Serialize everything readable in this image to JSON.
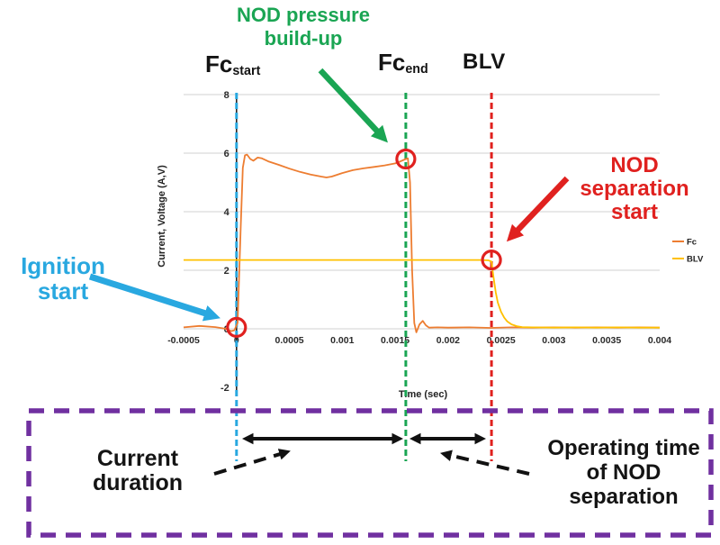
{
  "figure": {
    "labels": {
      "fc_start": {
        "main": "Fc",
        "sub": "start"
      },
      "fc_end": {
        "main": "Fc",
        "sub": "end"
      },
      "blv": "BLV",
      "nod_pressure": "NOD pressure\nbuild-up",
      "nod_separation": "NOD\nseparation\nstart",
      "ignition": "Ignition\nstart",
      "current_duration": "Current\nduration",
      "operating_time": "Operating time\nof NOD\nseparation"
    },
    "colors": {
      "fc_line": "#ED7D31",
      "blv_line": "#FFC000",
      "ignition_blue": "#29A8E0",
      "pressure_green": "#1AA553",
      "separation_red": "#E0211F",
      "box_purple": "#7030A0",
      "annotation_black": "#111111",
      "grid": "#D9D9D9",
      "axis": "#262626"
    }
  },
  "chart_data": {
    "type": "line",
    "title": "",
    "xlabel": "Time (sec)",
    "ylabel": "Current, Voltage (A,V)",
    "xlim": [
      -0.0005,
      0.004
    ],
    "ylim": [
      -2,
      8
    ],
    "grid": "horizontal gridlines at 0,2,4,6,8",
    "legend_position": "right, outside plot",
    "x_tick_values": [
      -0.0005,
      0,
      0.0005,
      0.001,
      0.0015,
      0.002,
      0.0025,
      0.003,
      0.0035,
      0.004
    ],
    "x_tick_labels": [
      "-0.0005",
      "0",
      "0.0005",
      "0.001",
      "0.0015",
      "0.002",
      "0.0025",
      "0.003",
      "0.0035",
      "0.004"
    ],
    "y_tick_values": [
      8,
      6,
      4,
      2,
      0,
      -2
    ],
    "y_tick_labels": [
      "8",
      "6",
      "4",
      "2",
      "0",
      "-2"
    ],
    "gridline_values": [
      8,
      6,
      4,
      2,
      0
    ],
    "legend": [
      {
        "name": "Fc",
        "color_key": "fc_line"
      },
      {
        "name": "BLV",
        "color_key": "blv_line"
      }
    ],
    "series": [
      {
        "name": "Fc",
        "color_key": "fc_line",
        "points": [
          [
            -0.0005,
            0.05
          ],
          [
            -0.00035,
            0.1
          ],
          [
            -0.0002,
            0.06
          ],
          [
            -0.0001,
            0.0
          ],
          [
            -5e-05,
            -0.08
          ],
          [
            -2e-05,
            -0.05
          ],
          [
            1e-05,
            0.2
          ],
          [
            4e-05,
            3.5
          ],
          [
            6e-05,
            5.5
          ],
          [
            8e-05,
            5.93
          ],
          [
            0.0001,
            5.95
          ],
          [
            0.00013,
            5.8
          ],
          [
            0.00016,
            5.74
          ],
          [
            0.0002,
            5.85
          ],
          [
            0.00024,
            5.82
          ],
          [
            0.0003,
            5.72
          ],
          [
            0.0004,
            5.6
          ],
          [
            0.0005,
            5.47
          ],
          [
            0.0006,
            5.36
          ],
          [
            0.0007,
            5.27
          ],
          [
            0.0008,
            5.2
          ],
          [
            0.00085,
            5.17
          ],
          [
            0.0009,
            5.2
          ],
          [
            0.001,
            5.32
          ],
          [
            0.0011,
            5.42
          ],
          [
            0.0012,
            5.48
          ],
          [
            0.0013,
            5.53
          ],
          [
            0.0014,
            5.58
          ],
          [
            0.0015,
            5.65
          ],
          [
            0.00155,
            5.72
          ],
          [
            0.0016,
            5.8
          ],
          [
            0.00162,
            5.82
          ],
          [
            0.00164,
            5.0
          ],
          [
            0.00166,
            2.0
          ],
          [
            0.00168,
            0.2
          ],
          [
            0.0017,
            -0.12
          ],
          [
            0.00173,
            0.15
          ],
          [
            0.00176,
            0.27
          ],
          [
            0.00179,
            0.12
          ],
          [
            0.00182,
            0.04
          ],
          [
            0.0019,
            0.05
          ],
          [
            0.002,
            0.04
          ],
          [
            0.0022,
            0.05
          ],
          [
            0.0024,
            0.03
          ],
          [
            0.0026,
            0.05
          ],
          [
            0.0028,
            0.04
          ],
          [
            0.003,
            0.05
          ],
          [
            0.0032,
            0.04
          ],
          [
            0.0034,
            0.05
          ],
          [
            0.0036,
            0.04
          ],
          [
            0.0038,
            0.05
          ],
          [
            0.004,
            0.04
          ]
        ]
      },
      {
        "name": "BLV",
        "color_key": "blv_line",
        "points": [
          [
            -0.0005,
            2.35
          ],
          [
            0,
            2.35
          ],
          [
            0.0005,
            2.35
          ],
          [
            0.001,
            2.35
          ],
          [
            0.0015,
            2.35
          ],
          [
            0.002,
            2.35
          ],
          [
            0.0023,
            2.35
          ],
          [
            0.00238,
            2.34
          ],
          [
            0.00241,
            2.3
          ],
          [
            0.00243,
            1.75
          ],
          [
            0.00245,
            1.25
          ],
          [
            0.00247,
            0.9
          ],
          [
            0.0025,
            0.58
          ],
          [
            0.00253,
            0.38
          ],
          [
            0.00256,
            0.25
          ],
          [
            0.0026,
            0.15
          ],
          [
            0.00265,
            0.09
          ],
          [
            0.0027,
            0.06
          ],
          [
            0.0028,
            0.05
          ],
          [
            0.003,
            0.04
          ],
          [
            0.0032,
            0.05
          ],
          [
            0.0034,
            0.04
          ],
          [
            0.0036,
            0.05
          ],
          [
            0.0038,
            0.04
          ],
          [
            0.004,
            0.04
          ]
        ]
      }
    ],
    "event_lines": [
      {
        "name": "ignition-start-line",
        "t": 0,
        "color_key": "ignition_blue"
      },
      {
        "name": "fc-end-line",
        "t": 0.0016,
        "color_key": "pressure_green"
      },
      {
        "name": "blv-drop-line",
        "t": 0.00241,
        "color_key": "separation_red"
      }
    ],
    "event_markers": [
      {
        "name": "ignition-start-marker",
        "t": 0,
        "v": 0.05
      },
      {
        "name": "pressure-peak-marker",
        "t": 0.0016,
        "v": 5.8
      },
      {
        "name": "separation-start-marker",
        "t": 0.00241,
        "v": 2.35
      }
    ]
  }
}
